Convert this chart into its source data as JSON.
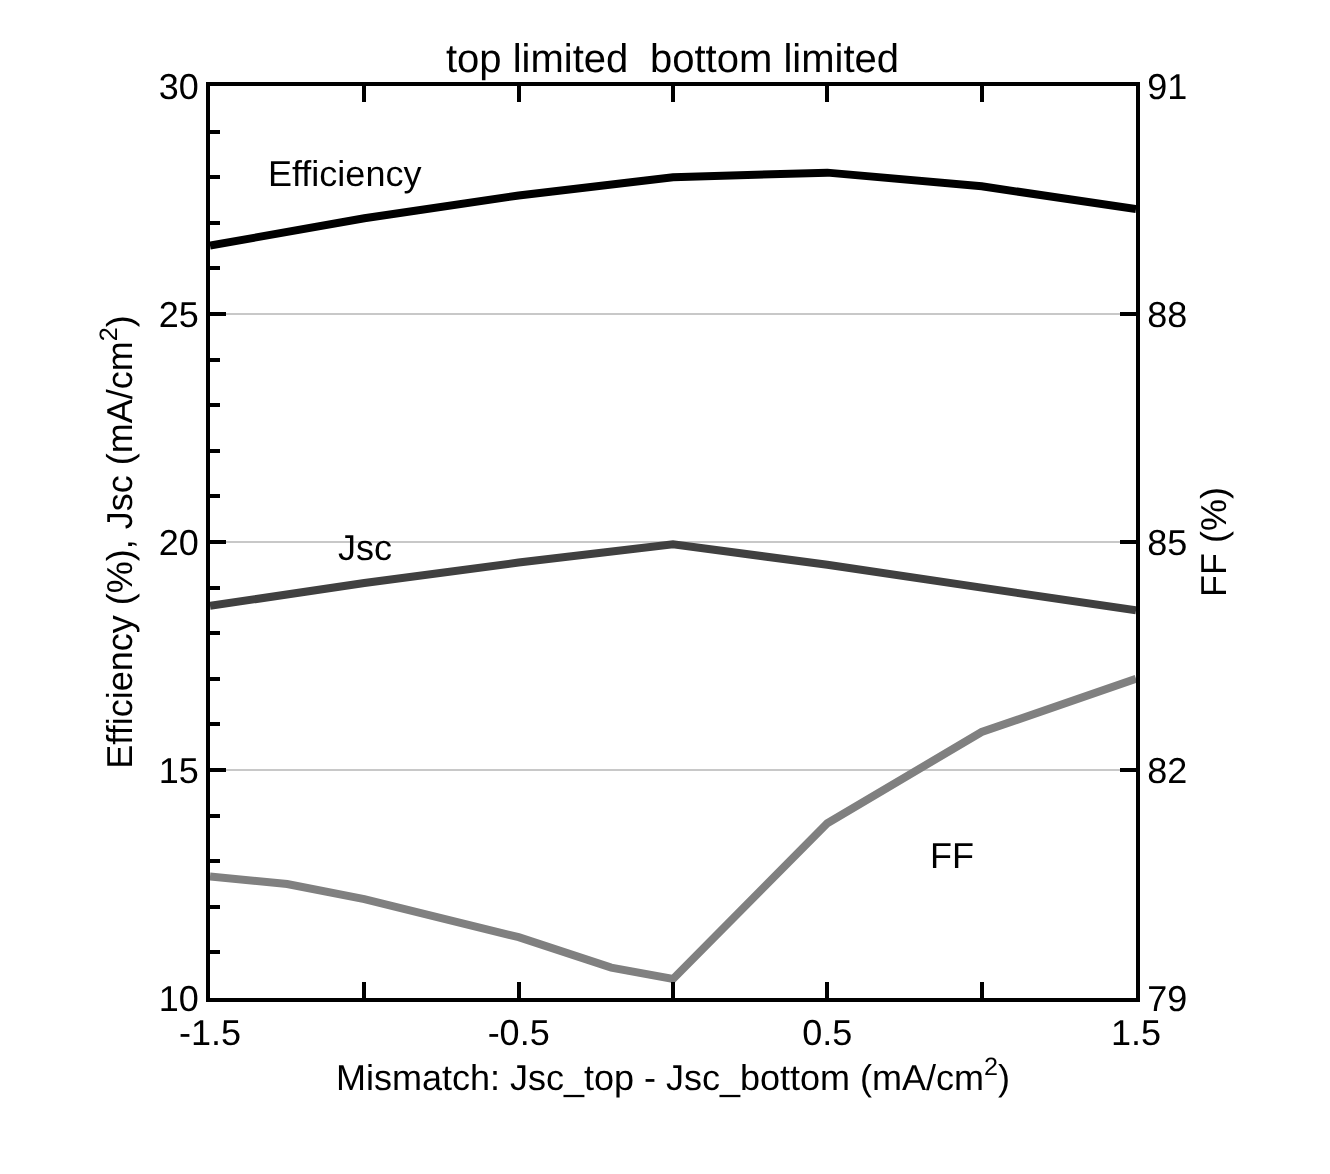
{
  "chart_data": {
    "type": "line",
    "xlabel": "Mismatch: Jsc_top - Jsc_bottom (mA/cm$^{2}$)",
    "ylabel": "Efficiency (%), Jsc (mA/cm$^{2}$)",
    "y2label": "FF (%)",
    "annotations": [
      "top limited",
      "bottom limited"
    ],
    "series": [
      {
        "name": "Efficiency",
        "color": "#000000",
        "x": [
          -1.5,
          -1.0,
          -0.5,
          0,
          0.5,
          1.0,
          1.5
        ],
        "values": [
          26.5,
          27.1,
          27.6,
          28.0,
          28.1,
          27.8,
          27.3
        ]
      },
      {
        "name": "Jsc",
        "color": "#404040",
        "x": [
          -1.5,
          -1.0,
          -0.5,
          0,
          0.5,
          1.0,
          1.5
        ],
        "values": [
          18.6,
          19.1,
          19.55,
          19.95,
          19.5,
          19.0,
          18.5
        ]
      },
      {
        "name": "FF",
        "color": "#808080",
        "axis": "y2",
        "x": [
          -1.5,
          -1.25,
          -1.0,
          -0.5,
          -0.2,
          0,
          0.5,
          1.0,
          1.5
        ],
        "values": [
          80.6,
          80.5,
          80.3,
          79.8,
          79.4,
          79.25,
          81.3,
          82.5,
          83.2
        ]
      }
    ],
    "xlim": [
      -1.5,
      1.5
    ],
    "xticks": [
      -1.5,
      {
        "value": -1.0,
        "label": null
      },
      -0.5,
      {
        "value": 0,
        "label": null
      },
      0.5,
      {
        "value": 1.0,
        "label": null
      },
      1.5
    ],
    "ylim": [
      10,
      30
    ],
    "yticks": [
      10,
      15,
      20,
      25,
      30
    ],
    "y2lim": [
      79,
      91
    ],
    "y2ticks": [
      79,
      82,
      85,
      88,
      91
    ],
    "grid": "y",
    "legend": false,
    "marker": "none",
    "line_style": "solid"
  }
}
